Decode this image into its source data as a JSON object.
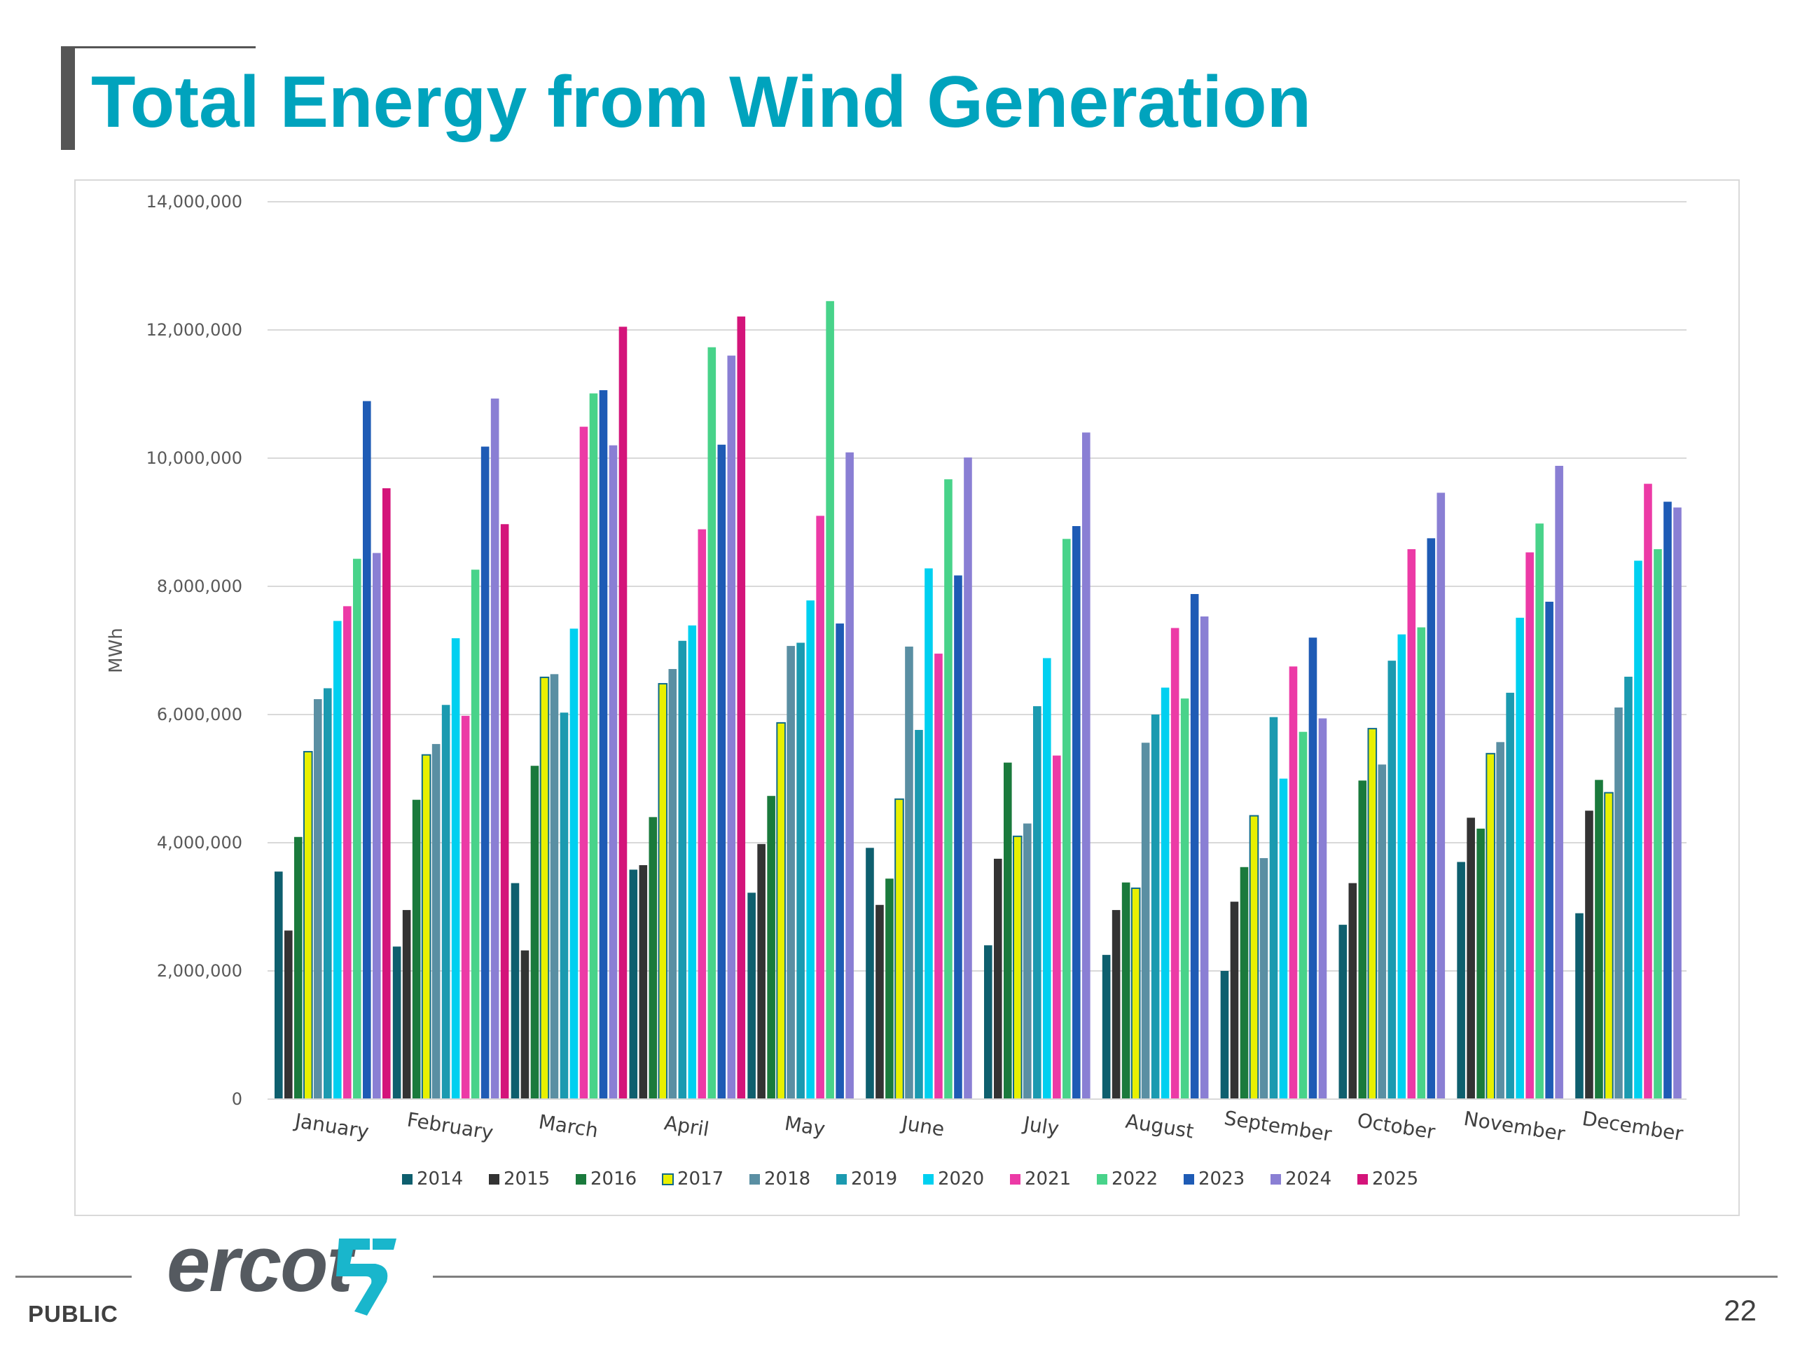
{
  "slide": {
    "title": "Total Energy from Wind Generation",
    "footer_label": "PUBLIC",
    "page_number": "22",
    "logo_text": "ercot",
    "title_color": "#00a3bd"
  },
  "chart_data": {
    "type": "bar",
    "ylabel": "MWh",
    "xlabel": "",
    "ylim": [
      0,
      14000000
    ],
    "yticks": [
      0,
      2000000,
      4000000,
      6000000,
      8000000,
      10000000,
      12000000,
      14000000
    ],
    "ytick_labels": [
      "0",
      "2,000,000",
      "4,000,000",
      "6,000,000",
      "8,000,000",
      "10,000,000",
      "12,000,000",
      "14,000,000"
    ],
    "grid": true,
    "legend_position": "bottom",
    "categories": [
      "January",
      "February",
      "March",
      "April",
      "May",
      "June",
      "July",
      "August",
      "September",
      "October",
      "November",
      "December"
    ],
    "series": [
      {
        "name": "2014",
        "color": "#0e5f6e",
        "values": [
          3550000,
          2380000,
          3370000,
          3580000,
          3220000,
          3920000,
          2400000,
          2250000,
          2000000,
          2720000,
          3700000,
          2900000
        ]
      },
      {
        "name": "2015",
        "color": "#333333",
        "values": [
          2630000,
          2950000,
          2320000,
          3650000,
          3980000,
          3030000,
          3750000,
          2950000,
          3080000,
          3370000,
          4390000,
          4500000
        ]
      },
      {
        "name": "2016",
        "color": "#1a7a3c",
        "values": [
          4090000,
          4670000,
          5200000,
          4400000,
          4730000,
          3440000,
          5250000,
          3380000,
          3620000,
          4970000,
          4220000,
          4980000
        ]
      },
      {
        "name": "2017",
        "color": "#e8f000",
        "values": [
          5420000,
          5370000,
          6580000,
          6480000,
          5870000,
          4680000,
          4100000,
          3290000,
          4420000,
          5780000,
          5390000,
          4780000
        ]
      },
      {
        "name": "2018",
        "color": "#5a8fa3",
        "values": [
          6240000,
          5540000,
          6630000,
          6710000,
          7070000,
          7060000,
          4300000,
          5560000,
          3760000,
          5220000,
          5570000,
          6110000
        ]
      },
      {
        "name": "2019",
        "color": "#1b9ab0",
        "values": [
          6410000,
          6150000,
          6030000,
          7150000,
          7120000,
          5760000,
          6130000,
          6000000,
          5960000,
          6840000,
          6340000,
          6590000
        ]
      },
      {
        "name": "2020",
        "color": "#00d0f0",
        "values": [
          7460000,
          7190000,
          7340000,
          7390000,
          7780000,
          8280000,
          6880000,
          6420000,
          5000000,
          7250000,
          7510000,
          8400000
        ]
      },
      {
        "name": "2021",
        "color": "#ec3aa6",
        "values": [
          7690000,
          5980000,
          10490000,
          8890000,
          9100000,
          6950000,
          5360000,
          7350000,
          6750000,
          8580000,
          8530000,
          9600000
        ]
      },
      {
        "name": "2022",
        "color": "#48d38a",
        "values": [
          8430000,
          8260000,
          11010000,
          11730000,
          12450000,
          9670000,
          8740000,
          6250000,
          5730000,
          7360000,
          8980000,
          8580000
        ]
      },
      {
        "name": "2023",
        "color": "#1e5bb5",
        "values": [
          10890000,
          10180000,
          11060000,
          10210000,
          7420000,
          8170000,
          8940000,
          7880000,
          7200000,
          8750000,
          7760000,
          9320000
        ]
      },
      {
        "name": "2024",
        "color": "#8a7fd4",
        "values": [
          8520000,
          10930000,
          10200000,
          11600000,
          10090000,
          10010000,
          10400000,
          7530000,
          5940000,
          9460000,
          9880000,
          9230000
        ]
      },
      {
        "name": "2025",
        "color": "#d4147a",
        "values": [
          9530000,
          8970000,
          12050000,
          12210000,
          null,
          null,
          null,
          null,
          null,
          null,
          null,
          null
        ]
      }
    ]
  }
}
